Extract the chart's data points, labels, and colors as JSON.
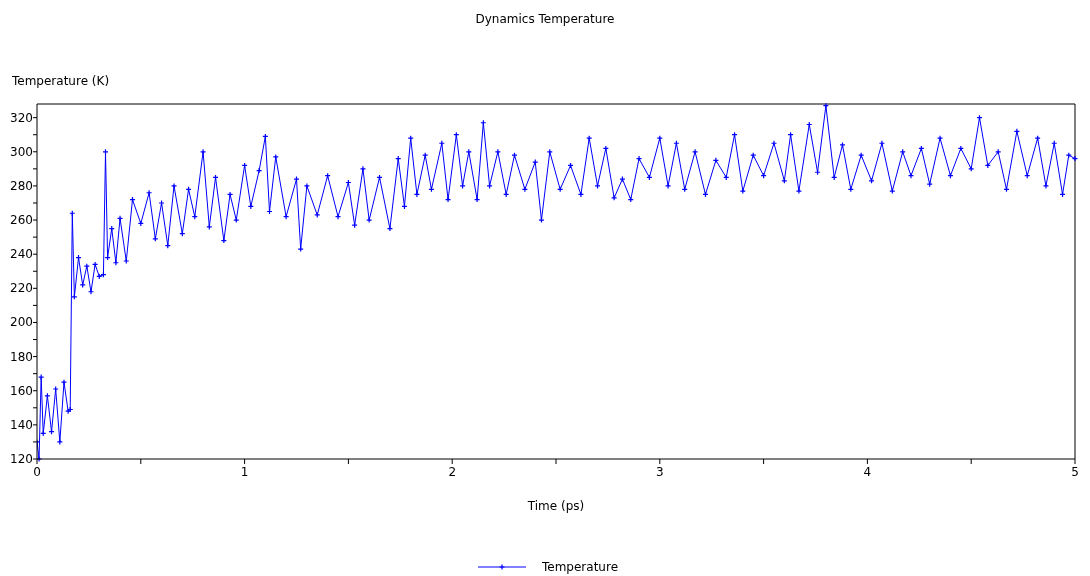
{
  "chart_data": {
    "type": "line",
    "title": "Dynamics Temperature",
    "xlabel": "Time (ps)",
    "ylabel": "Temperature (K)",
    "xlim": [
      0,
      5
    ],
    "xticks": [
      0,
      {
        "value": 0.5,
        "label": null
      },
      1,
      {
        "value": 1.5,
        "label": null
      },
      2,
      {
        "value": 2.5,
        "label": null
      },
      3,
      {
        "value": 3.5,
        "label": null
      },
      4,
      {
        "value": 4.5,
        "label": null
      },
      5
    ],
    "ylim": [
      120,
      328
    ],
    "yticks": [
      120,
      {
        "value": 130,
        "label": null
      },
      140,
      {
        "value": 150,
        "label": null
      },
      160,
      {
        "value": 170,
        "label": null
      },
      180,
      {
        "value": 190,
        "label": null
      },
      200,
      {
        "value": 210,
        "label": null
      },
      220,
      {
        "value": 230,
        "label": null
      },
      240,
      {
        "value": 250,
        "label": null
      },
      260,
      {
        "value": 270,
        "label": null
      },
      280,
      {
        "value": 290,
        "label": null
      },
      300,
      {
        "value": 310,
        "label": null
      },
      320
    ],
    "grid": false,
    "legend": "bottom",
    "marker": "cross",
    "line_style": "solid",
    "series": [
      {
        "name": "Temperature",
        "color": "#0000ff",
        "x": [
          0,
          0.01,
          0.02,
          0.03,
          0.05,
          0.07,
          0.09,
          0.11,
          0.13,
          0.15,
          0.16,
          0.17,
          0.18,
          0.2,
          0.22,
          0.24,
          0.26,
          0.28,
          0.3,
          0.32,
          0.33,
          0.34,
          0.36,
          0.38,
          0.4,
          0.43,
          0.46,
          0.5,
          0.54,
          0.57,
          0.6,
          0.63,
          0.66,
          0.7,
          0.73,
          0.76,
          0.8,
          0.83,
          0.86,
          0.9,
          0.93,
          0.96,
          1.0,
          1.03,
          1.07,
          1.1,
          1.12,
          1.15,
          1.2,
          1.25,
          1.27,
          1.3,
          1.35,
          1.4,
          1.45,
          1.5,
          1.53,
          1.57,
          1.6,
          1.65,
          1.7,
          1.74,
          1.77,
          1.8,
          1.83,
          1.87,
          1.9,
          1.95,
          1.98,
          2.02,
          2.05,
          2.08,
          2.12,
          2.15,
          2.18,
          2.22,
          2.26,
          2.3,
          2.35,
          2.4,
          2.43,
          2.47,
          2.52,
          2.57,
          2.62,
          2.66,
          2.7,
          2.74,
          2.78,
          2.82,
          2.86,
          2.9,
          2.95,
          3.0,
          3.04,
          3.08,
          3.12,
          3.17,
          3.22,
          3.27,
          3.32,
          3.36,
          3.4,
          3.45,
          3.5,
          3.55,
          3.6,
          3.63,
          3.67,
          3.72,
          3.76,
          3.8,
          3.84,
          3.88,
          3.92,
          3.97,
          4.02,
          4.07,
          4.12,
          4.17,
          4.21,
          4.26,
          4.3,
          4.35,
          4.4,
          4.45,
          4.5,
          4.54,
          4.58,
          4.63,
          4.67,
          4.72,
          4.77,
          4.82,
          4.86,
          4.9,
          4.94,
          4.97,
          5.0
        ],
        "values": [
          130,
          120,
          168,
          135,
          157,
          136,
          161,
          130,
          165,
          148,
          149,
          264,
          215,
          238,
          222,
          233,
          218,
          234,
          227,
          228,
          300,
          238,
          255,
          235,
          261,
          236,
          272,
          258,
          276,
          249,
          270,
          245,
          280,
          252,
          278,
          262,
          300,
          256,
          285,
          248,
          275,
          260,
          292,
          268,
          289,
          309,
          265,
          297,
          262,
          284,
          243,
          280,
          263,
          286,
          262,
          282,
          257,
          290,
          260,
          285,
          255,
          296,
          268,
          308,
          275,
          298,
          278,
          305,
          272,
          310,
          280,
          300,
          272,
          317,
          280,
          300,
          275,
          298,
          278,
          294,
          260,
          300,
          278,
          292,
          275,
          308,
          280,
          302,
          273,
          284,
          272,
          296,
          285,
          308,
          280,
          305,
          278,
          300,
          275,
          295,
          285,
          310,
          277,
          298,
          286,
          305,
          283,
          310,
          277,
          316,
          288,
          327,
          285,
          304,
          278,
          298,
          283,
          305,
          277,
          300,
          286,
          302,
          281,
          308,
          286,
          302,
          290,
          320,
          292,
          300,
          278,
          312,
          286,
          308,
          280,
          305,
          275,
          298,
          296
        ]
      }
    ]
  }
}
